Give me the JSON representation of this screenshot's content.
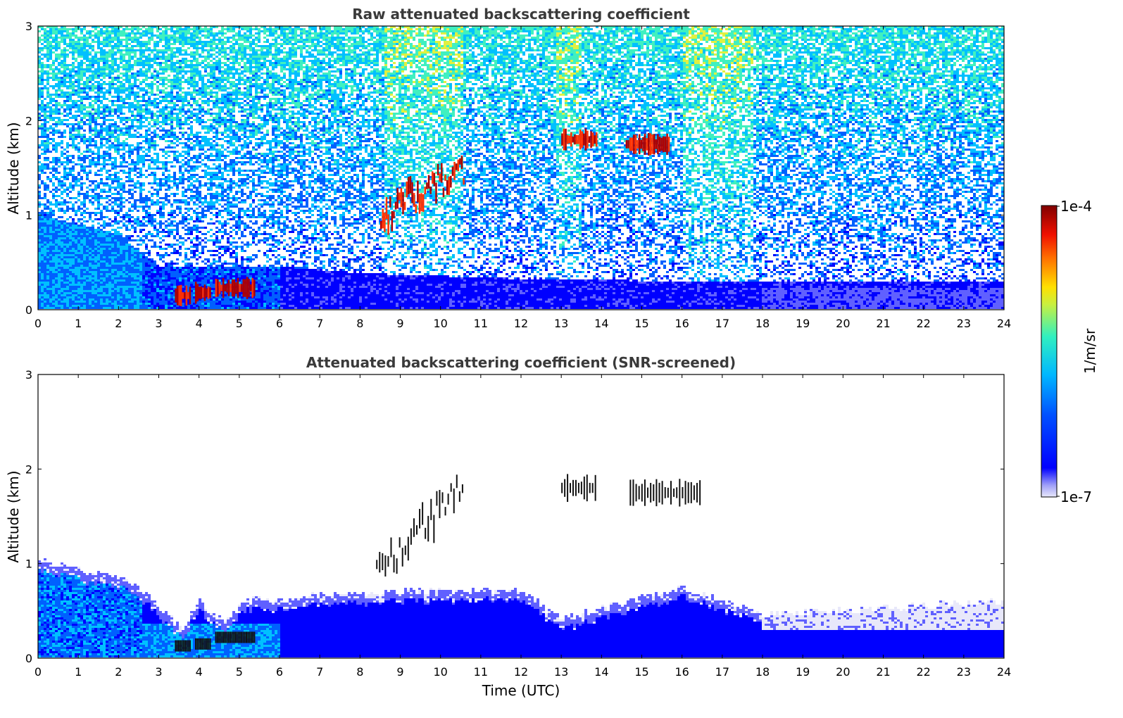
{
  "chart_data": [
    {
      "type": "heatmap",
      "title": "Raw attenuated backscattering coefficient",
      "xlabel": "",
      "ylabel": "Altitude (km)",
      "xlim": [
        0,
        24
      ],
      "ylim": [
        0,
        3
      ],
      "x_ticks": [
        "0",
        "1",
        "2",
        "3",
        "4",
        "5",
        "6",
        "7",
        "8",
        "9",
        "10",
        "11",
        "12",
        "13",
        "14",
        "15",
        "16",
        "17",
        "18",
        "19",
        "20",
        "21",
        "22",
        "23",
        "24"
      ],
      "y_ticks": [
        "0",
        "1",
        "2",
        "3"
      ],
      "grid": false,
      "features": {
        "boundary_layer_top_km": [
          [
            0,
            1.0
          ],
          [
            2,
            0.8
          ],
          [
            3,
            0.45
          ],
          [
            6,
            0.45
          ],
          [
            8,
            0.38
          ],
          [
            12,
            0.32
          ],
          [
            18,
            0.28
          ],
          [
            24,
            0.28
          ]
        ],
        "strong_layers": [
          {
            "t_start": 3.4,
            "t_end": 3.8,
            "alt_km": 0.15
          },
          {
            "t_start": 3.9,
            "t_end": 4.3,
            "alt_km": 0.18
          },
          {
            "t_start": 4.4,
            "t_end": 5.4,
            "alt_km": 0.23
          },
          {
            "t_start": 8.5,
            "t_end": 10.6,
            "alt_km_start": 1.0,
            "alt_km_end": 1.5
          },
          {
            "t_start": 13.0,
            "t_end": 13.9,
            "alt_km": 1.8
          },
          {
            "t_start": 14.6,
            "t_end": 15.7,
            "alt_km": 1.75
          }
        ]
      }
    },
    {
      "type": "heatmap",
      "title": "Attenuated backscattering coefficient (SNR-screened)",
      "xlabel": "Time (UTC)",
      "ylabel": "Altitude (km)",
      "xlim": [
        0,
        24
      ],
      "ylim": [
        0,
        3
      ],
      "x_ticks": [
        "0",
        "1",
        "2",
        "3",
        "4",
        "5",
        "6",
        "7",
        "8",
        "9",
        "10",
        "11",
        "12",
        "13",
        "14",
        "15",
        "16",
        "17",
        "18",
        "19",
        "20",
        "21",
        "22",
        "23",
        "24"
      ],
      "y_ticks": [
        "0",
        "1",
        "2",
        "3"
      ],
      "grid": false,
      "features": {
        "boundary_layer_top_km": [
          [
            0,
            1.02
          ],
          [
            2.2,
            0.82
          ],
          [
            2.8,
            0.62
          ],
          [
            3.6,
            0.3
          ],
          [
            4.0,
            0.6
          ],
          [
            4.6,
            0.38
          ],
          [
            5.2,
            0.6
          ],
          [
            8,
            0.68
          ],
          [
            12,
            0.72
          ],
          [
            13,
            0.4
          ],
          [
            16,
            0.75
          ],
          [
            18,
            0.45
          ],
          [
            24,
            0.6
          ]
        ],
        "cloud_segments": [
          {
            "t_start": 8.4,
            "t_end": 10.6,
            "alt_km_start": 0.95,
            "alt_km_end": 1.8
          },
          {
            "t_start": 13.0,
            "t_end": 13.9,
            "alt_km": 1.8
          },
          {
            "t_start": 14.7,
            "t_end": 16.5,
            "alt_km": 1.75
          }
        ]
      }
    }
  ],
  "colorbar": {
    "label": "1/m/sr",
    "max_label": "1e-4",
    "min_label": "1e-7",
    "scale": "log",
    "range": [
      1e-07,
      0.0001
    ],
    "colormap": [
      "#e8e8fa",
      "#6060ff",
      "#0000ff",
      "#0060ff",
      "#00c0ff",
      "#40f0c0",
      "#e0f040",
      "#ff9000",
      "#ff2000",
      "#800000"
    ]
  }
}
